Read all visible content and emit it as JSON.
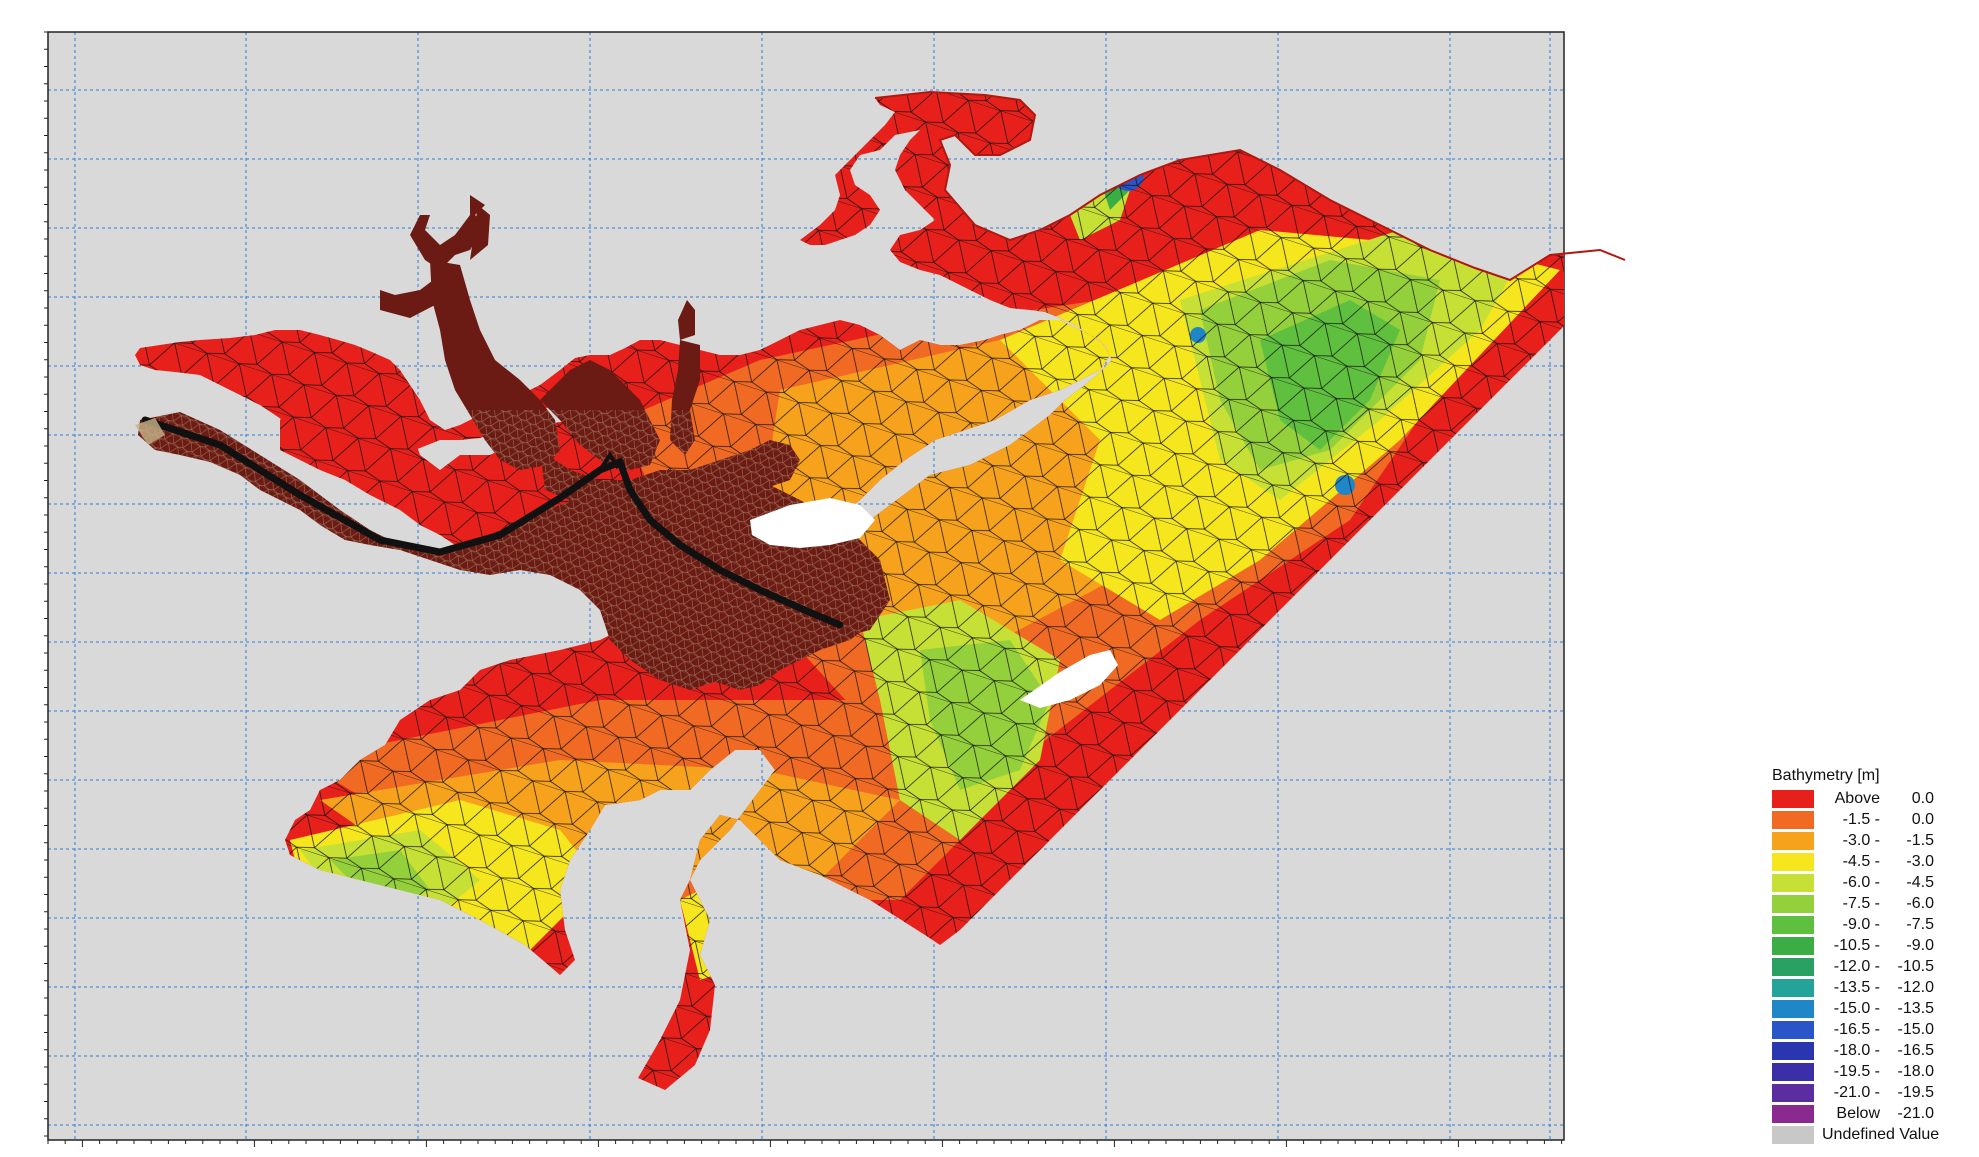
{
  "legend": {
    "title": "Bathymetry [m]",
    "items": [
      {
        "from": "Above",
        "to": "0.0",
        "color": "#e8201c"
      },
      {
        "from": "-1.5 -",
        "to": "0.0",
        "color": "#f06a24"
      },
      {
        "from": "-3.0 -",
        "to": "-1.5",
        "color": "#f7a21c"
      },
      {
        "from": "-4.5 -",
        "to": "-3.0",
        "color": "#f5e61e"
      },
      {
        "from": "-6.0 -",
        "to": "-4.5",
        "color": "#c7e035"
      },
      {
        "from": "-7.5 -",
        "to": "-6.0",
        "color": "#94d03c"
      },
      {
        "from": "-9.0 -",
        "to": "-7.5",
        "color": "#5fbf3e"
      },
      {
        "from": "-10.5 -",
        "to": "-9.0",
        "color": "#3aae44"
      },
      {
        "from": "-12.0 -",
        "to": "-10.5",
        "color": "#2aa062"
      },
      {
        "from": "-13.5 -",
        "to": "-12.0",
        "color": "#23a39a"
      },
      {
        "from": "-15.0 -",
        "to": "-13.5",
        "color": "#1f86c7"
      },
      {
        "from": "-16.5 -",
        "to": "-15.0",
        "color": "#2a55c8"
      },
      {
        "from": "-18.0 -",
        "to": "-16.5",
        "color": "#2a35b0"
      },
      {
        "from": "-19.5 -",
        "to": "-18.0",
        "color": "#3a2fa6"
      },
      {
        "from": "-21.0 -",
        "to": "-19.5",
        "color": "#5a2ea0"
      },
      {
        "from": "Below",
        "to": "-21.0",
        "color": "#8a2a8e"
      },
      {
        "label": "Undefined Value",
        "color": "#c8c8c8"
      }
    ]
  },
  "map": {
    "background_color": "#d9d9d9",
    "grid_color": "#2f7ad6",
    "mesh_color": "#101010",
    "channel_color": "#6b1a14"
  }
}
